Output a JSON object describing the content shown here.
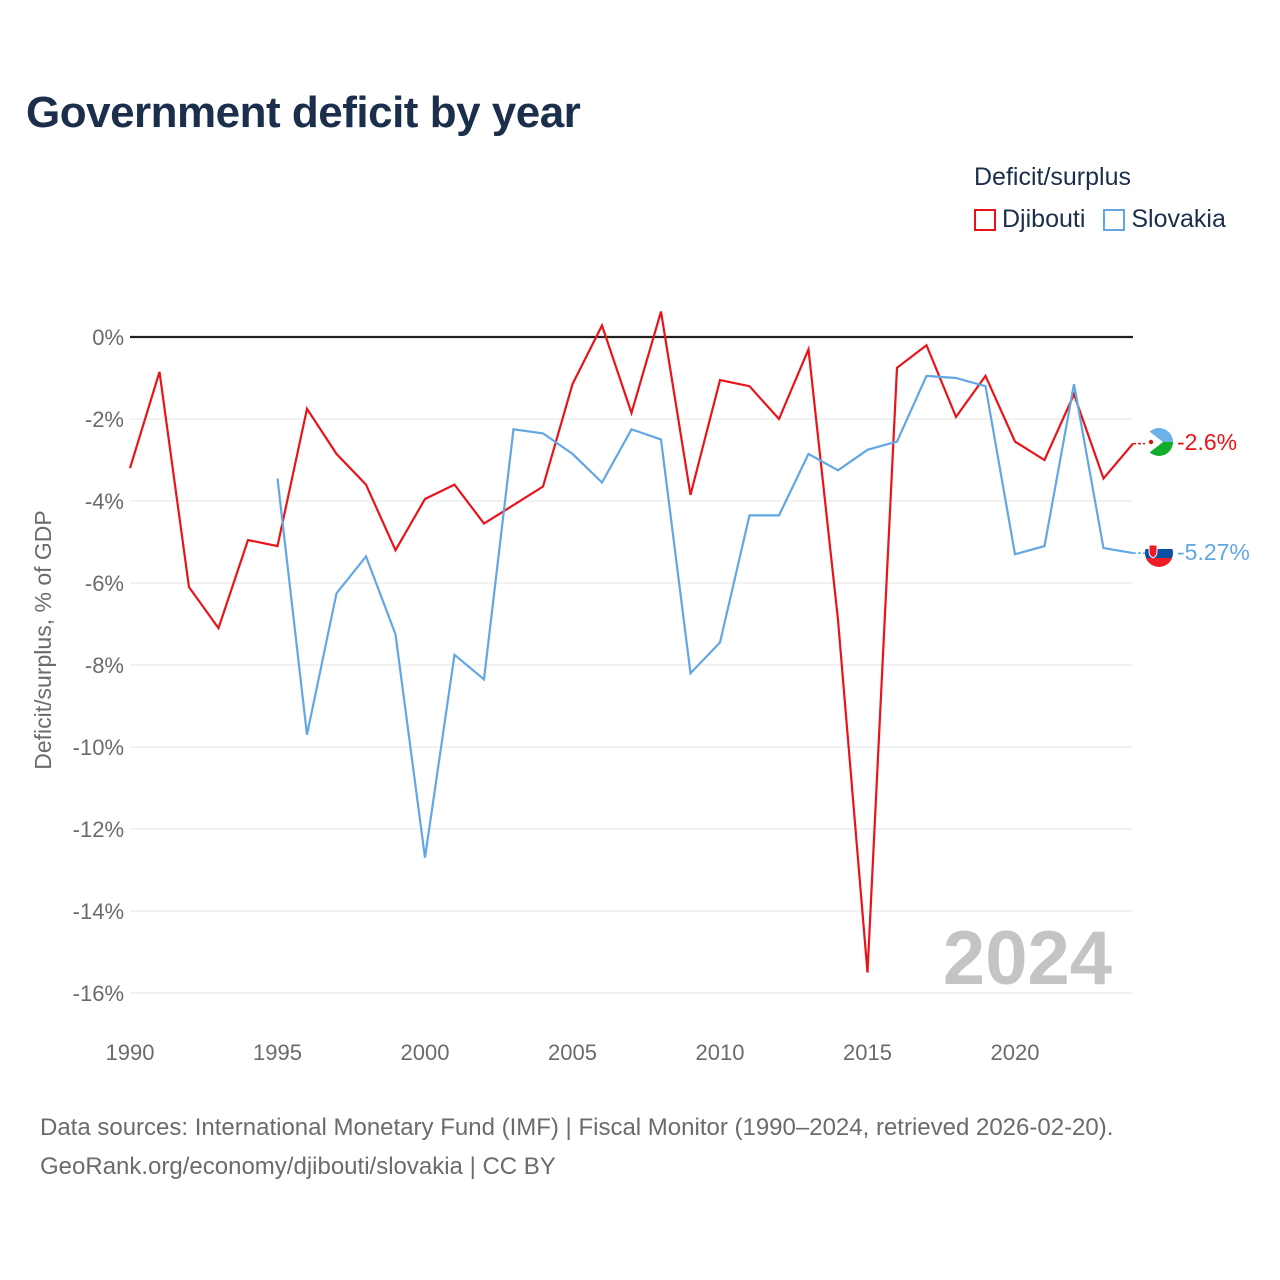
{
  "title": "Government deficit by year",
  "legend": {
    "title": "Deficit/surplus",
    "items": [
      {
        "label": "Djibouti",
        "color": "#e8141a"
      },
      {
        "label": "Slovakia",
        "color": "#62a7e4"
      }
    ]
  },
  "year_watermark": "2024",
  "source_line1": "Data sources: International Monetary Fund (IMF) | Fiscal Monitor (1990–2024, retrieved 2026-02-20).",
  "source_line2": "GeoRank.org/economy/djibouti/slovakia | CC BY",
  "chart_data": {
    "type": "line",
    "title": "Government deficit by year",
    "xlabel": "",
    "ylabel": "Deficit/surplus, % of GDP",
    "xlim": [
      1990,
      2024
    ],
    "ylim": [
      -16.5,
      1
    ],
    "x_ticks": [
      1990,
      1995,
      2000,
      2005,
      2010,
      2015,
      2020
    ],
    "x_tick_labels": [
      "1990",
      "1995",
      "2000",
      "2005",
      "2010",
      "2015",
      "2020"
    ],
    "y_ticks": [
      0,
      -2,
      -4,
      -6,
      -8,
      -10,
      -12,
      -14,
      -16
    ],
    "y_tick_labels": [
      "0%",
      "-2%",
      "-4%",
      "-6%",
      "-8%",
      "-10%",
      "-12%",
      "-14%",
      "-16%"
    ],
    "grid": true,
    "legend_position": "top-right",
    "series": [
      {
        "name": "Djibouti",
        "color": "#e8141a",
        "end_label": "-2.6%",
        "x": [
          1990,
          1991,
          1992,
          1993,
          1994,
          1995,
          1996,
          1997,
          1998,
          1999,
          2000,
          2001,
          2002,
          2003,
          2004,
          2005,
          2006,
          2007,
          2008,
          2009,
          2010,
          2011,
          2012,
          2013,
          2014,
          2015,
          2016,
          2017,
          2018,
          2019,
          2020,
          2021,
          2022,
          2023,
          2024
        ],
        "values": [
          -3.2,
          -0.85,
          -6.1,
          -7.1,
          -4.95,
          -5.1,
          -1.75,
          -2.85,
          -3.6,
          -5.2,
          -3.95,
          -3.6,
          -4.55,
          -4.1,
          -3.65,
          -1.15,
          0.28,
          -1.85,
          0.62,
          -3.85,
          -1.05,
          -1.2,
          -2.0,
          -0.3,
          -6.9,
          -15.5,
          -0.75,
          -0.2,
          -1.95,
          -0.95,
          -2.55,
          -3.0,
          -1.4,
          -3.45,
          -2.6
        ]
      },
      {
        "name": "Slovakia",
        "color": "#62a7e4",
        "end_label": "-5.27%",
        "x": [
          1995,
          1996,
          1997,
          1998,
          1999,
          2000,
          2001,
          2002,
          2003,
          2004,
          2005,
          2006,
          2007,
          2008,
          2009,
          2010,
          2011,
          2012,
          2013,
          2014,
          2015,
          2016,
          2017,
          2018,
          2019,
          2020,
          2021,
          2022,
          2023,
          2024
        ],
        "values": [
          -3.45,
          -9.7,
          -6.25,
          -5.35,
          -7.25,
          -12.7,
          -7.75,
          -8.35,
          -2.25,
          -2.35,
          -2.85,
          -3.55,
          -2.25,
          -2.5,
          -8.2,
          -7.45,
          -4.35,
          -4.35,
          -2.85,
          -3.25,
          -2.75,
          -2.55,
          -0.95,
          -1.0,
          -1.2,
          -5.3,
          -5.1,
          -1.15,
          -5.15,
          -5.27
        ]
      }
    ]
  }
}
